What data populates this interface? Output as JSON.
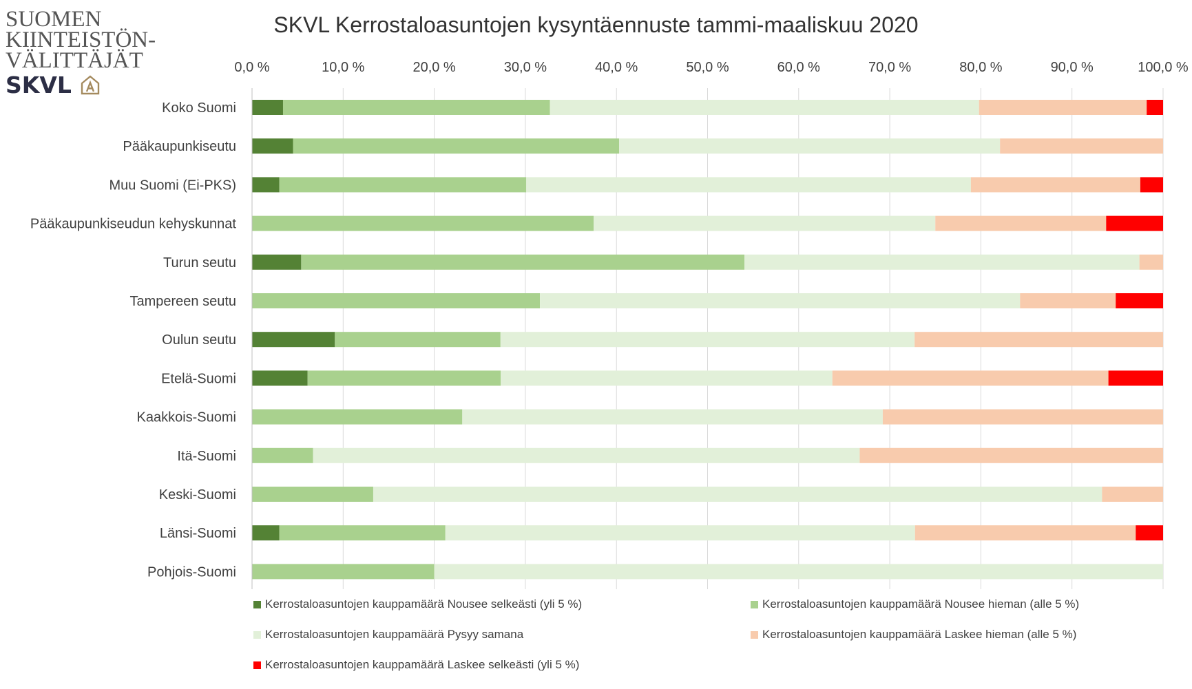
{
  "logo": {
    "lines": [
      "SUOMEN",
      "KIINTEISTÖN-",
      "VÄLITTÄJÄT"
    ],
    "abbr": "SKVL"
  },
  "chart_data": {
    "type": "bar",
    "orientation": "horizontal",
    "stacked": "percent",
    "title": "SKVL Kerrostaloasuntojen kysyntäennuste tammi-maaliskuu 2020",
    "xlabel": "",
    "ylabel": "",
    "xlim": [
      0,
      100
    ],
    "x_ticks": [
      "0,0 %",
      "10,0 %",
      "20,0 %",
      "30,0 %",
      "40,0 %",
      "50,0 %",
      "60,0 %",
      "70,0 %",
      "80,0 %",
      "90,0 %",
      "100,0 %"
    ],
    "x_tick_values": [
      0,
      10,
      20,
      30,
      40,
      50,
      60,
      70,
      80,
      90,
      100
    ],
    "grid": "vertical",
    "legend_position": "bottom",
    "categories": [
      "Koko Suomi",
      "Pääkaupunkiseutu",
      "Muu Suomi (Ei-PKS)",
      "Pääkaupunkiseudun kehyskunnat",
      "Turun seutu",
      "Tampereen seutu",
      "Oulun seutu",
      "Etelä-Suomi",
      "Kaakkois-Suomi",
      "Itä-Suomi",
      "Keski-Suomi",
      "Länsi-Suomi",
      "Pohjois-Suomi"
    ],
    "series": [
      {
        "name": "Kerrostaloasuntojen kauppamäärä Nousee selkeästi (yli 5 %)",
        "color": "#548235",
        "values": [
          3.4,
          4.5,
          3.0,
          0,
          5.4,
          0,
          9.1,
          6.1,
          0,
          0,
          0,
          3.0,
          0
        ]
      },
      {
        "name": "Kerrostaloasuntojen kauppamäärä Nousee hieman (alle 5 %)",
        "color": "#a9d18e",
        "values": [
          29.3,
          35.8,
          27.1,
          37.5,
          48.7,
          31.6,
          18.2,
          21.2,
          23.1,
          6.7,
          13.3,
          18.2,
          20.0
        ]
      },
      {
        "name": "Kerrostaloasuntojen kauppamäärä Pysyy samana",
        "color": "#e2f0d9",
        "values": [
          47.1,
          41.8,
          48.8,
          37.5,
          43.4,
          52.7,
          45.5,
          36.4,
          46.2,
          60.0,
          80.0,
          51.5,
          80.0
        ]
      },
      {
        "name": "Kerrostaloasuntojen kauppamäärä Laskee hieman (alle 5 %)",
        "color": "#f8cbad",
        "values": [
          18.4,
          17.9,
          18.6,
          18.75,
          2.6,
          10.5,
          27.3,
          30.3,
          30.8,
          33.3,
          6.7,
          24.2,
          0
        ]
      },
      {
        "name": "Kerrostaloasuntojen kauppamäärä Laskee selkeästi (yli 5 %)",
        "color": "#ff0000",
        "values": [
          1.8,
          0,
          2.5,
          6.25,
          0,
          5.2,
          0,
          6.0,
          0,
          0,
          0,
          3.0,
          0
        ]
      }
    ]
  }
}
